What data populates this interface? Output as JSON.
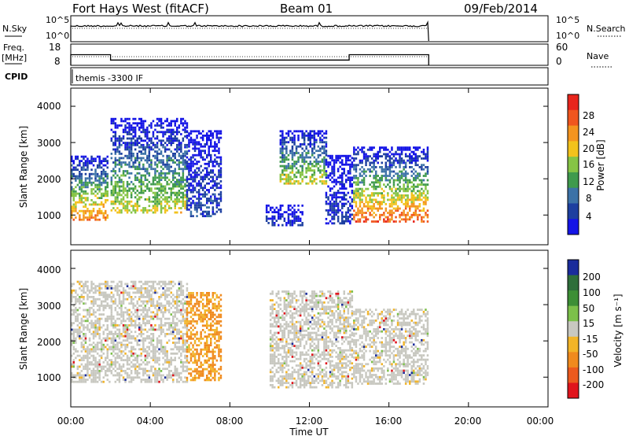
{
  "header": {
    "station": "Fort Hays West (fitACF)",
    "beam": "Beam 01",
    "date": "09/Feb/2014"
  },
  "sidebar": {
    "nsky_label": "N.Sky",
    "freq_label": "Freq.",
    "freq_unit": "[MHz]",
    "cpid_label": "CPID",
    "nsearch_label": "N.Search",
    "nave_label": "Nave"
  },
  "noise_panel": {
    "left_ticks": [
      "10^5",
      "10^0"
    ],
    "right_ticks": [
      "10^5",
      "10^0"
    ]
  },
  "freq_panel": {
    "left_ticks": [
      "18",
      "8"
    ],
    "right_ticks": [
      "60",
      "0"
    ]
  },
  "cpid_panel": {
    "text": "themis -3300 IF"
  },
  "power_panel": {
    "ylabel": "Slant Range [km]",
    "yticks": [
      "4000",
      "3000",
      "2000",
      "1000"
    ],
    "colorbar": {
      "label": "Power [dB]",
      "ticks": [
        "28",
        "24",
        "20",
        "16",
        "12",
        "8",
        "4"
      ],
      "colors": [
        "#e8251c",
        "#f0561f",
        "#f4941f",
        "#f2c21c",
        "#86c445",
        "#3f9a4d",
        "#3c72a7",
        "#1d3fa0",
        "#1414e6"
      ]
    }
  },
  "velocity_panel": {
    "ylabel": "Slant Range [km]",
    "yticks": [
      "4000",
      "3000",
      "2000",
      "1000"
    ],
    "colorbar": {
      "label": "Velocity [m s⁻¹]",
      "ticks": [
        "200",
        "100",
        "50",
        "15",
        "-15",
        "-50",
        "-100",
        "-200"
      ],
      "colors": [
        "#1a2c9c",
        "#2e6e3a",
        "#3d8f36",
        "#7cc04a",
        "#c8c8c0",
        "#f2b428",
        "#f08a1e",
        "#ec5a1e",
        "#e0141c"
      ]
    }
  },
  "time_axis": {
    "label": "Time UT",
    "ticks": [
      "00:00",
      "04:00",
      "08:00",
      "12:00",
      "16:00",
      "20:00",
      "00:00"
    ]
  },
  "chart_data": {
    "type": "heatmap",
    "title": "Fort Hays West (fitACF) Beam 01 09/Feb/2014",
    "xlabel": "Time UT",
    "xlim_hours": [
      0,
      24
    ],
    "data_end_hour": 18,
    "ylabel": "Slant Range [km]",
    "ylim": [
      180,
      4500
    ],
    "frequency_steps": [
      {
        "start_hour": 0.0,
        "end_hour": 2.0,
        "freq_mhz": 13
      },
      {
        "start_hour": 2.0,
        "end_hour": 14.0,
        "freq_mhz": 10.5
      },
      {
        "start_hour": 14.0,
        "end_hour": 18.0,
        "freq_mhz": 13
      }
    ],
    "power_patches": [
      {
        "t0": 0.0,
        "t1": 1.9,
        "r_low": 900,
        "r_high": 2700,
        "peak_db": 26
      },
      {
        "t0": 2.0,
        "t1": 5.8,
        "r_low": 1100,
        "r_high": 3700,
        "peak_db": 20
      },
      {
        "t0": 5.8,
        "t1": 7.5,
        "r_low": 1000,
        "r_high": 3400,
        "peak_db": 8
      },
      {
        "t0": 9.8,
        "t1": 11.6,
        "r_low": 750,
        "r_high": 1300,
        "peak_db": 6
      },
      {
        "t0": 10.5,
        "t1": 12.8,
        "r_low": 1900,
        "r_high": 3400,
        "peak_db": 20
      },
      {
        "t0": 12.8,
        "t1": 14.1,
        "r_low": 800,
        "r_high": 2700,
        "peak_db": 6
      },
      {
        "t0": 14.2,
        "t1": 18.0,
        "r_low": 850,
        "r_high": 2900,
        "peak_db": 28
      }
    ],
    "velocity_patches": [
      {
        "t0": 0.0,
        "t1": 5.8,
        "r_low": 900,
        "r_high": 3700,
        "dominant": "-15 to 15"
      },
      {
        "t0": 5.8,
        "t1": 7.5,
        "r_low": 950,
        "r_high": 3400,
        "dominant": "-50"
      },
      {
        "t0": 10.0,
        "t1": 14.1,
        "r_low": 750,
        "r_high": 3400,
        "dominant": "-15 to 15"
      },
      {
        "t0": 14.2,
        "t1": 18.0,
        "r_low": 850,
        "r_high": 2900,
        "dominant": "-15 to 15"
      }
    ]
  }
}
